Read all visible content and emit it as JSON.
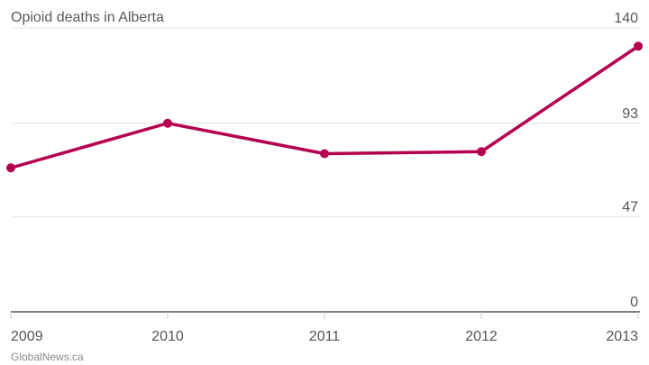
{
  "chart_data": {
    "type": "line",
    "title": "Opioid deaths in Alberta",
    "x": [
      "2009",
      "2010",
      "2011",
      "2012",
      "2013"
    ],
    "series": [
      {
        "values": [
          71,
          93,
          78,
          79,
          131
        ]
      }
    ],
    "ylim": [
      0,
      140
    ],
    "yticks": [
      "0",
      "47",
      "93",
      "140"
    ],
    "ytick_values": [
      0,
      47,
      93,
      140
    ],
    "xlabel": "",
    "ylabel": "",
    "grid": true,
    "line_color": "#b5004f"
  },
  "source": "GlobalNews.ca"
}
